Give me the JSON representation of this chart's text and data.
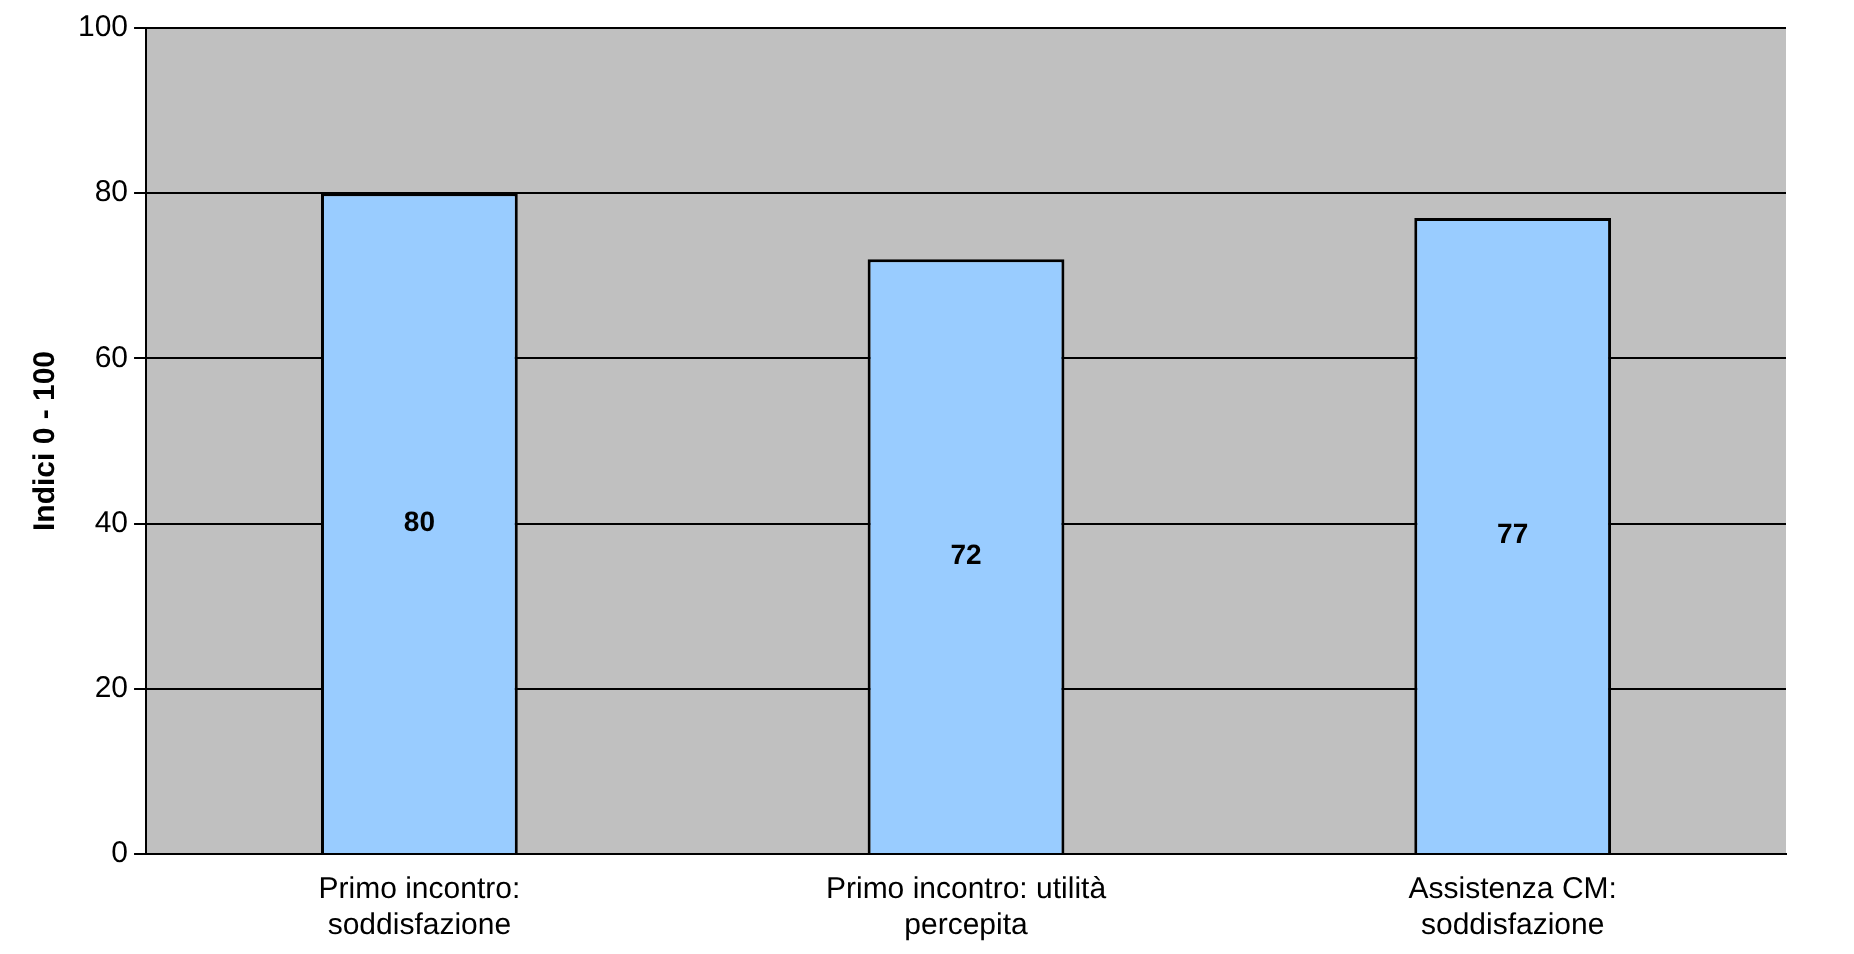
{
  "chart_data": {
    "type": "bar",
    "ylabel": "Indici 0 - 100",
    "categories": [
      "Primo incontro: soddisfazione",
      "Primo incontro: utilità percepita",
      "Assistenza CM: soddisfazione"
    ],
    "values": [
      80,
      72,
      77
    ],
    "color": "#99ccff",
    "ylim": [
      0,
      100
    ],
    "yticks": [
      0,
      20,
      40,
      60,
      80,
      100
    ],
    "grid": "y",
    "data_labels": true,
    "legend": false
  }
}
